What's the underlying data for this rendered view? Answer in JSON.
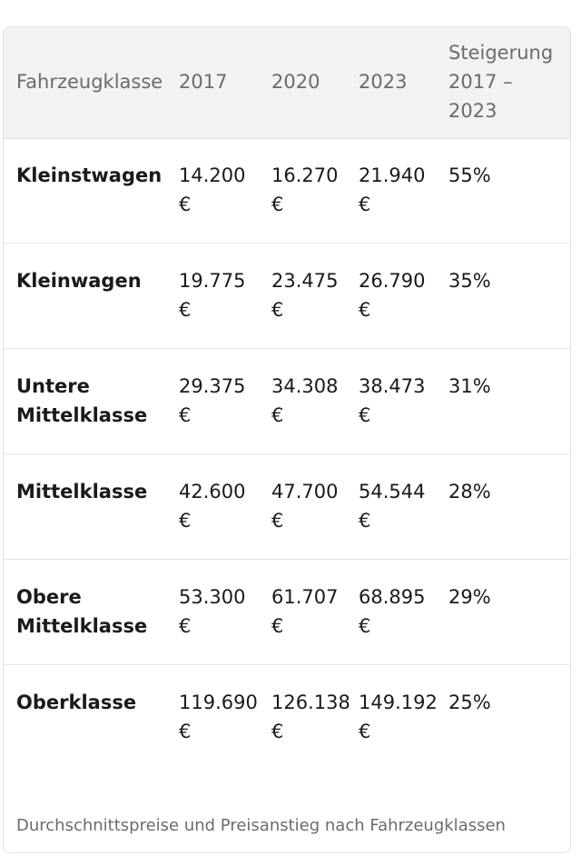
{
  "table": {
    "headers": [
      "Fahrzeugklasse",
      "2017",
      "2020",
      "2023",
      "Steigerung 2017 – 2023"
    ],
    "rows": [
      {
        "klasse": "Kleinstwagen",
        "y2017": "14.200 €",
        "y2020": "16.270 €",
        "y2023": "21.940 €",
        "steigerung": "55%"
      },
      {
        "klasse": "Kleinwagen",
        "y2017": "19.775 €",
        "y2020": "23.475 €",
        "y2023": "26.790 €",
        "steigerung": "35%"
      },
      {
        "klasse": "Untere Mittelklasse",
        "y2017": "29.375 €",
        "y2020": "34.308 €",
        "y2023": "38.473 €",
        "steigerung": "31%"
      },
      {
        "klasse": "Mittelklasse",
        "y2017": "42.600 €",
        "y2020": "47.700 €",
        "y2023": "54.544 €",
        "steigerung": "28%"
      },
      {
        "klasse": "Obere Mittelklasse",
        "y2017": "53.300 €",
        "y2020": "61.707 €",
        "y2023": "68.895 €",
        "steigerung": "29%"
      },
      {
        "klasse": "Oberklasse",
        "y2017": "119.690 €",
        "y2020": "126.138 €",
        "y2023": "149.192 €",
        "steigerung": "25%"
      }
    ]
  },
  "caption": "Durchschnittspreise und Preisanstieg nach Fahrzeugklassen"
}
